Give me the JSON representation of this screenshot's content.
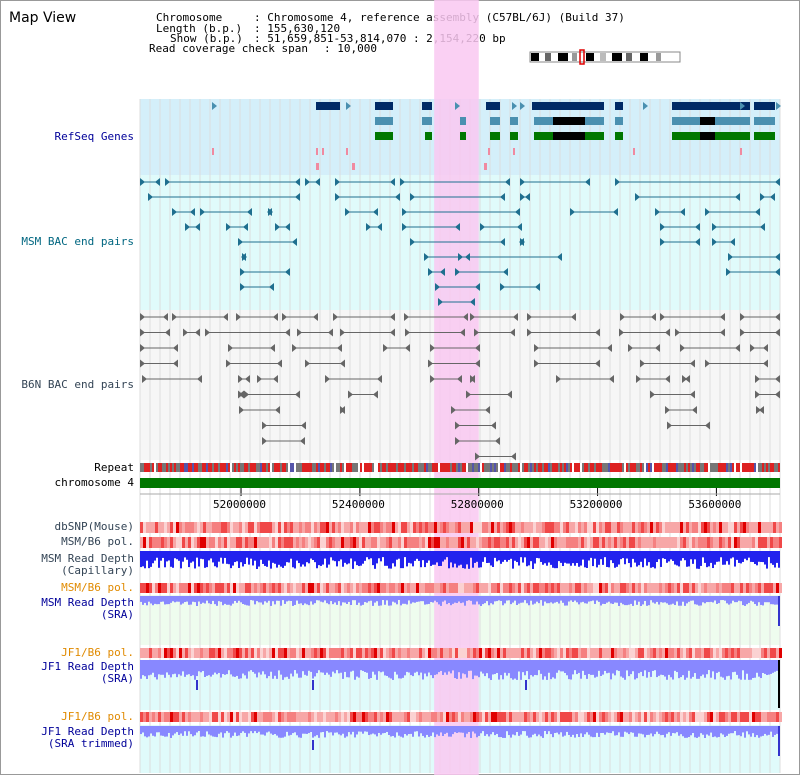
{
  "header": {
    "title": "Map View",
    "chromosome_label": "Chromosome",
    "chromosome_value": ": Chromosome 4, reference assembly (C57BL/6J) (Build 37)",
    "length_label": "Length (b.p.)",
    "length_value": ": 155,630,120",
    "show_label": "Show (b.p.)",
    "show_value": ": 51,659,851-53,814,070 : 2,154,220 bp",
    "coverage_label": "Read coverage check span",
    "coverage_value": ": 10,000"
  },
  "tracks": {
    "refseq": "RefSeq Genes",
    "msm_bac": "MSM BAC end pairs",
    "b6n_bac": "B6N BAC end pairs",
    "repeat": "Repeat",
    "chromosome": "chromosome 4",
    "dbsnp": "dbSNP(Mouse)",
    "msm_b6_pol_1": "MSM/B6 pol.",
    "msm_depth_cap_1": "MSM Read Depth",
    "msm_depth_cap_2": "(Capillary)",
    "msm_b6_pol_2": "MSM/B6 pol.",
    "msm_depth_sra_1": "MSM Read Depth",
    "msm_depth_sra_2": "(SRA)",
    "jf1_b6_pol_1": "JF1/B6 pol.",
    "jf1_depth_sra_1": "JF1 Read Depth",
    "jf1_depth_sra_2": "(SRA)",
    "jf1_b6_pol_2": "JF1/B6 pol.",
    "jf1_depth_trim_1": "JF1 Read Depth",
    "jf1_depth_trim_2": "(SRA trimmed)"
  },
  "axis": {
    "ticks": [
      {
        "label": "52000000",
        "value": 52000000
      },
      {
        "label": "52400000",
        "value": 52400000
      },
      {
        "label": "52800000",
        "value": 52800000
      },
      {
        "label": "53200000",
        "value": 53200000
      },
      {
        "label": "53600000",
        "value": 53600000
      }
    ],
    "range": [
      51659851,
      53814070
    ]
  },
  "highlight_region": [
    52650000,
    52800000
  ],
  "colors": {
    "refseq_bg": "#d4effa",
    "msm_bg": "#e0fbfb",
    "b6n_bg": "#f6f6f6",
    "depth_bg": "#eefcee",
    "highlight": "#f9c8f1",
    "gene_dark": "#002a66",
    "gene_mid": "#4a90b0",
    "gene_green": "#007700",
    "msm_pair": "#1f6f8f",
    "b6n_pair": "#666666",
    "chromosome_bar": "#007700",
    "snp_red": "#ee3333",
    "depth_blue": "#2222ee",
    "depth_light": "#8888ff"
  }
}
